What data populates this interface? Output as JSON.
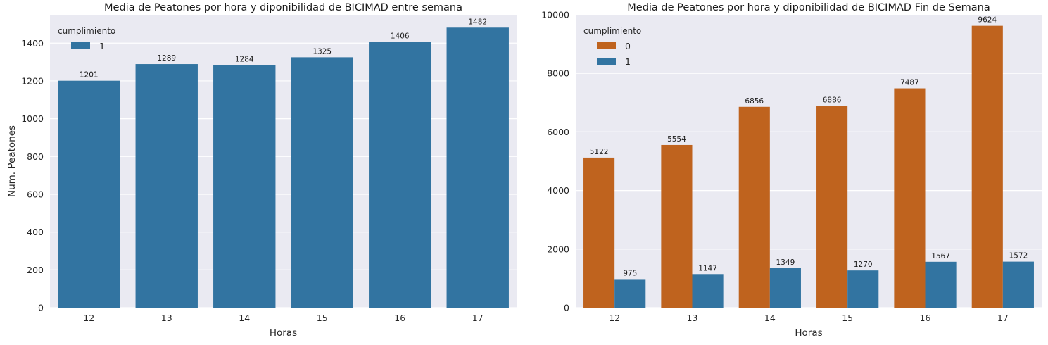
{
  "chart_data": [
    {
      "type": "bar",
      "title": "Media de Peatones por hora y diponibilidad de BICIMAD entre semana",
      "xlabel": "Horas",
      "ylabel": "Num. Peatones",
      "categories": [
        "12",
        "13",
        "14",
        "15",
        "16",
        "17"
      ],
      "ylim": [
        0,
        1550
      ],
      "yticks": [
        0,
        200,
        400,
        600,
        800,
        1000,
        1200,
        1400
      ],
      "grid": true,
      "legend": {
        "title": "cumplimiento",
        "placement": "top-left"
      },
      "series": [
        {
          "name": "1",
          "color": "#3274a1",
          "values": [
            1201,
            1289,
            1284,
            1325,
            1406,
            1482
          ]
        }
      ]
    },
    {
      "type": "bar",
      "title": "Media de Peatones por hora y diponibilidad de BICIMAD Fin de Semana",
      "xlabel": "Horas",
      "ylabel": "",
      "categories": [
        "12",
        "13",
        "14",
        "15",
        "16",
        "17"
      ],
      "ylim": [
        0,
        10000
      ],
      "yticks": [
        0,
        2000,
        4000,
        6000,
        8000,
        10000
      ],
      "grid": true,
      "legend": {
        "title": "cumplimiento",
        "placement": "top-left"
      },
      "series": [
        {
          "name": "0",
          "color": "#bf631e",
          "values": [
            5122,
            5554,
            6856,
            6886,
            7487,
            9624
          ]
        },
        {
          "name": "1",
          "color": "#3274a1",
          "values": [
            975,
            1147,
            1349,
            1270,
            1567,
            1572
          ]
        }
      ]
    }
  ]
}
